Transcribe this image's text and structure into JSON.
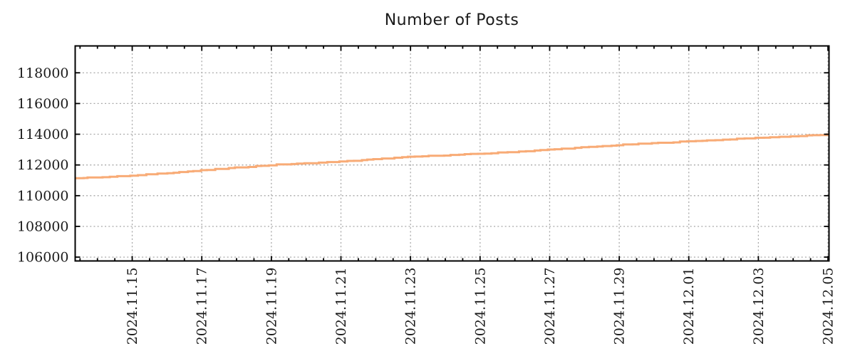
{
  "chart_data": {
    "type": "line",
    "title": "Number of Posts",
    "xlabel": "",
    "ylabel": "",
    "legend": "none",
    "grid": "dashed gray, both axes at major ticks",
    "colors": {
      "line": "#f8ab76",
      "grid": "#a8a8a8",
      "frame": "#000000",
      "text": "#1a1a1a",
      "background": "#ffffff"
    },
    "line_width": 3,
    "line_style": "step (cumulative count, small irregular increments)",
    "x_axis": {
      "start_date": "2024.11.13",
      "domain_days": [
        0.36,
        22.03
      ],
      "major_tick_days": [
        2,
        4,
        6,
        8,
        10,
        12,
        14,
        16,
        18,
        20,
        22
      ],
      "major_tick_labels": [
        "2024.11.15",
        "2024.11.17",
        "2024.11.19",
        "2024.11.21",
        "2024.11.23",
        "2024.11.25",
        "2024.11.27",
        "2024.11.29",
        "2024.12.01",
        "2024.12.03",
        "2024.12.05"
      ],
      "minor_tick_interval_days": 0.5,
      "label_rotation_deg": -90
    },
    "y_axis": {
      "domain": [
        105750,
        119750
      ],
      "major_tick_values": [
        106000,
        108000,
        110000,
        112000,
        114000,
        116000,
        118000
      ],
      "major_tick_labels": [
        "106000",
        "108000",
        "110000",
        "112000",
        "114000",
        "116000",
        "118000"
      ]
    },
    "series": [
      {
        "name": "Number of Posts",
        "dates": [
          "2024.11.13",
          "2024.11.14",
          "2024.11.15",
          "2024.11.16",
          "2024.11.17",
          "2024.11.18",
          "2024.11.19",
          "2024.11.20",
          "2024.11.21",
          "2024.11.22",
          "2024.11.23",
          "2024.11.24",
          "2024.11.25",
          "2024.11.26",
          "2024.11.27",
          "2024.11.28",
          "2024.11.29",
          "2024.11.30",
          "2024.12.01",
          "2024.12.02",
          "2024.12.03",
          "2024.12.04",
          "2024.12.05"
        ],
        "values": [
          111100,
          111200,
          111300,
          111480,
          111650,
          111830,
          112000,
          112110,
          112220,
          112380,
          112530,
          112630,
          112730,
          112860,
          113000,
          113150,
          113300,
          113420,
          113540,
          113650,
          113770,
          113870,
          113980
        ]
      }
    ],
    "layout": {
      "plot_left": 105.5,
      "plot_top": 64.5,
      "plot_right": 1163.5,
      "plot_bottom": 366.5
    }
  }
}
